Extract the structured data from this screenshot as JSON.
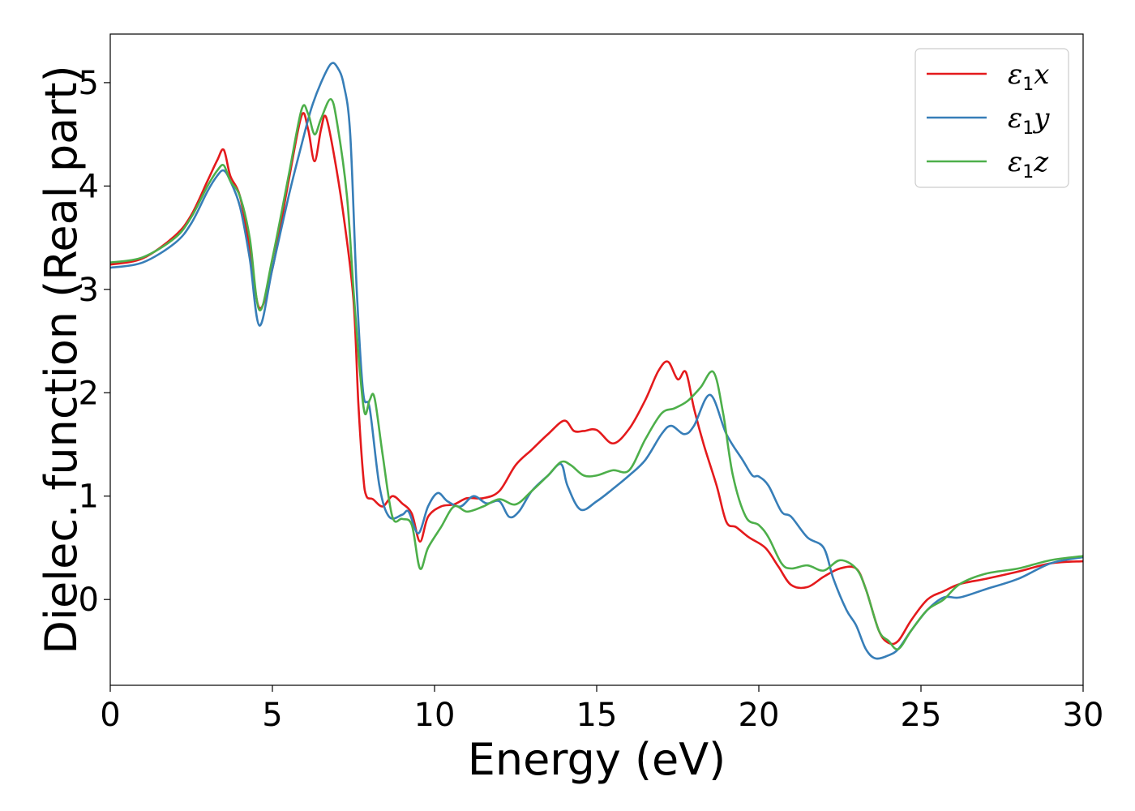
{
  "chart_data": {
    "type": "line",
    "xlabel": "Energy (eV)",
    "ylabel": "Dielec. function (Real part)",
    "xlim": [
      0,
      30
    ],
    "ylim": [
      -0.83,
      5.47
    ],
    "xticks": [
      0,
      5,
      10,
      15,
      20,
      25,
      30
    ],
    "yticks": [
      0,
      1,
      2,
      3,
      4,
      5
    ],
    "grid": false,
    "legend_position": "top-right",
    "series": [
      {
        "name": "ε1x",
        "legend_base": "ε",
        "legend_sub": "1",
        "legend_suffix": "x",
        "color": "#e41a1c",
        "x": [
          0,
          1,
          2,
          2.5,
          3,
          3.3,
          3.5,
          3.7,
          4.0,
          4.3,
          4.6,
          5.0,
          5.5,
          5.9,
          6.1,
          6.3,
          6.5,
          6.65,
          6.9,
          7.2,
          7.5,
          7.65,
          7.8,
          7.9,
          8.1,
          8.4,
          8.7,
          9.0,
          9.3,
          9.55,
          9.8,
          10.2,
          10.6,
          11.0,
          11.5,
          12.0,
          12.5,
          13.0,
          13.5,
          14.0,
          14.3,
          14.6,
          15.0,
          15.5,
          16.0,
          16.5,
          16.9,
          17.2,
          17.5,
          17.75,
          18.0,
          18.3,
          18.7,
          19.0,
          19.3,
          19.7,
          20.2,
          20.6,
          21.0,
          21.5,
          22.0,
          22.5,
          23.0,
          23.3,
          23.7,
          24.0,
          24.3,
          24.7,
          25.2,
          25.7,
          26.2,
          27.0,
          28.0,
          29.0,
          30.0
        ],
        "y": [
          3.24,
          3.3,
          3.52,
          3.72,
          4.05,
          4.25,
          4.35,
          4.1,
          3.9,
          3.4,
          2.82,
          3.2,
          4.05,
          4.68,
          4.55,
          4.24,
          4.55,
          4.67,
          4.3,
          3.7,
          2.9,
          1.9,
          1.2,
          1.0,
          0.97,
          0.9,
          1.0,
          0.93,
          0.83,
          0.56,
          0.8,
          0.9,
          0.92,
          0.98,
          0.98,
          1.05,
          1.3,
          1.45,
          1.6,
          1.73,
          1.63,
          1.63,
          1.64,
          1.51,
          1.65,
          1.93,
          2.21,
          2.3,
          2.13,
          2.2,
          1.85,
          1.5,
          1.1,
          0.75,
          0.7,
          0.6,
          0.5,
          0.32,
          0.14,
          0.12,
          0.22,
          0.3,
          0.3,
          0.1,
          -0.3,
          -0.42,
          -0.4,
          -0.2,
          0.0,
          0.08,
          0.15,
          0.2,
          0.27,
          0.35,
          0.37
        ]
      },
      {
        "name": "ε1y",
        "legend_base": "ε",
        "legend_sub": "1",
        "legend_suffix": "y",
        "color": "#377eb8",
        "x": [
          0,
          1,
          2,
          2.5,
          3,
          3.3,
          3.5,
          3.7,
          4.0,
          4.3,
          4.6,
          5.0,
          5.5,
          5.9,
          6.2,
          6.5,
          6.8,
          7.0,
          7.2,
          7.4,
          7.6,
          7.8,
          8.0,
          8.3,
          8.6,
          9.0,
          9.2,
          9.5,
          9.8,
          10.1,
          10.4,
          10.8,
          11.2,
          11.6,
          12.0,
          12.3,
          12.6,
          13.0,
          13.5,
          13.9,
          14.1,
          14.5,
          15.0,
          15.5,
          16.0,
          16.5,
          17.0,
          17.3,
          17.7,
          18.0,
          18.5,
          19.0,
          19.5,
          19.8,
          20.0,
          20.3,
          20.7,
          21.0,
          21.5,
          22.0,
          22.3,
          22.7,
          23.0,
          23.3,
          23.6,
          24.0,
          24.3,
          24.7,
          25.2,
          25.7,
          26.2,
          27.0,
          28.0,
          29.0,
          30.0
        ],
        "y": [
          3.21,
          3.26,
          3.45,
          3.64,
          3.95,
          4.1,
          4.15,
          4.05,
          3.8,
          3.3,
          2.65,
          3.2,
          3.9,
          4.4,
          4.75,
          5.0,
          5.18,
          5.15,
          4.98,
          4.5,
          3.0,
          2.0,
          1.85,
          1.1,
          0.8,
          0.82,
          0.85,
          0.64,
          0.9,
          1.03,
          0.95,
          0.9,
          1.0,
          0.93,
          0.95,
          0.8,
          0.85,
          1.05,
          1.2,
          1.31,
          1.1,
          0.87,
          0.95,
          1.07,
          1.2,
          1.35,
          1.6,
          1.68,
          1.6,
          1.68,
          1.98,
          1.6,
          1.35,
          1.2,
          1.19,
          1.1,
          0.85,
          0.8,
          0.6,
          0.5,
          0.2,
          -0.1,
          -0.25,
          -0.48,
          -0.57,
          -0.54,
          -0.48,
          -0.3,
          -0.1,
          0.02,
          0.02,
          0.1,
          0.2,
          0.35,
          0.41
        ]
      },
      {
        "name": "ε1z",
        "legend_base": "ε",
        "legend_sub": "1",
        "legend_suffix": "z",
        "color": "#4daf4a",
        "x": [
          0,
          1,
          2,
          2.5,
          3,
          3.3,
          3.5,
          3.7,
          4.0,
          4.3,
          4.6,
          5.0,
          5.5,
          5.9,
          6.1,
          6.3,
          6.5,
          6.8,
          7.0,
          7.3,
          7.5,
          7.7,
          7.85,
          8.0,
          8.15,
          8.4,
          8.7,
          9.0,
          9.3,
          9.55,
          9.8,
          10.2,
          10.6,
          11.0,
          11.5,
          12.0,
          12.5,
          13.0,
          13.5,
          13.9,
          14.2,
          14.6,
          15.0,
          15.5,
          16.0,
          16.5,
          17.0,
          17.4,
          17.8,
          18.2,
          18.6,
          18.9,
          19.2,
          19.6,
          20.0,
          20.3,
          20.7,
          21.0,
          21.5,
          22.0,
          22.5,
          23.0,
          23.3,
          23.7,
          24.0,
          24.3,
          24.7,
          25.2,
          25.7,
          26.2,
          27.0,
          28.0,
          29.0,
          30.0
        ],
        "y": [
          3.26,
          3.31,
          3.5,
          3.7,
          4.0,
          4.15,
          4.2,
          4.05,
          3.9,
          3.5,
          2.8,
          3.3,
          4.1,
          4.74,
          4.7,
          4.5,
          4.65,
          4.84,
          4.6,
          3.9,
          3.0,
          2.2,
          1.8,
          1.93,
          1.95,
          1.4,
          0.8,
          0.78,
          0.72,
          0.3,
          0.5,
          0.7,
          0.9,
          0.85,
          0.9,
          0.97,
          0.92,
          1.05,
          1.2,
          1.33,
          1.3,
          1.2,
          1.2,
          1.25,
          1.25,
          1.55,
          1.8,
          1.85,
          1.92,
          2.05,
          2.2,
          1.8,
          1.2,
          0.8,
          0.72,
          0.6,
          0.35,
          0.3,
          0.33,
          0.28,
          0.38,
          0.3,
          0.1,
          -0.3,
          -0.4,
          -0.48,
          -0.3,
          -0.1,
          0.0,
          0.15,
          0.25,
          0.3,
          0.38,
          0.42
        ]
      }
    ]
  }
}
